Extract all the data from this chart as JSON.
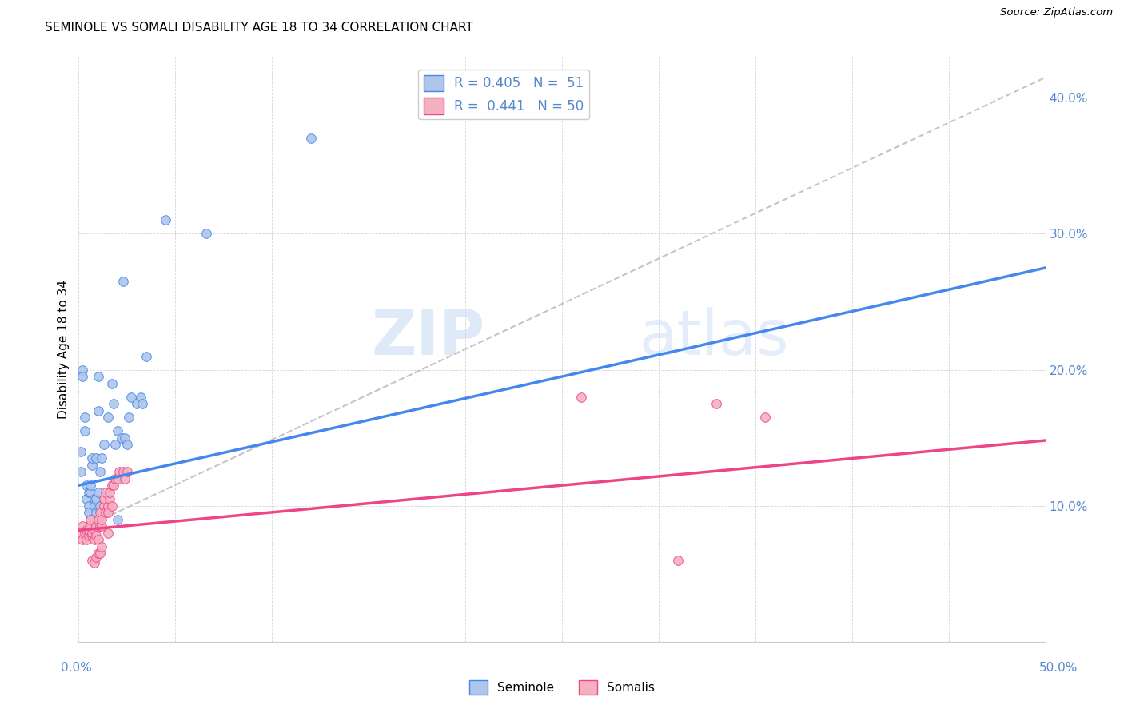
{
  "title": "SEMINOLE VS SOMALI DISABILITY AGE 18 TO 34 CORRELATION CHART",
  "source": "Source: ZipAtlas.com",
  "ylabel": "Disability Age 18 to 34",
  "xlim": [
    0.0,
    0.5
  ],
  "ylim": [
    0.0,
    0.43
  ],
  "watermark_zip": "ZIP",
  "watermark_atlas": "atlas",
  "seminole_color": "#aec6ea",
  "somali_color": "#f5b0c0",
  "seminole_line_color": "#4488ee",
  "somali_line_color": "#ee4488",
  "dashed_line_color": "#bbbbbb",
  "tick_color": "#5588cc",
  "legend_seminole_label": "R = 0.405   N =  51",
  "legend_somali_label": "R =  0.441   N = 50",
  "seminole_trend_x": [
    0.0,
    0.5
  ],
  "seminole_trend_y": [
    0.115,
    0.275
  ],
  "somali_trend_x": [
    0.0,
    0.5
  ],
  "somali_trend_y": [
    0.082,
    0.148
  ],
  "dashed_trend_x": [
    0.0,
    0.5
  ],
  "dashed_trend_y": [
    0.082,
    0.415
  ],
  "seminole_points": [
    [
      0.001,
      0.125
    ],
    [
      0.001,
      0.14
    ],
    [
      0.002,
      0.2
    ],
    [
      0.002,
      0.195
    ],
    [
      0.003,
      0.155
    ],
    [
      0.003,
      0.165
    ],
    [
      0.004,
      0.105
    ],
    [
      0.004,
      0.115
    ],
    [
      0.005,
      0.11
    ],
    [
      0.005,
      0.1
    ],
    [
      0.005,
      0.095
    ],
    [
      0.006,
      0.11
    ],
    [
      0.006,
      0.115
    ],
    [
      0.007,
      0.13
    ],
    [
      0.007,
      0.135
    ],
    [
      0.008,
      0.105
    ],
    [
      0.008,
      0.1
    ],
    [
      0.009,
      0.095
    ],
    [
      0.009,
      0.135
    ],
    [
      0.01,
      0.1
    ],
    [
      0.01,
      0.195
    ],
    [
      0.01,
      0.17
    ],
    [
      0.011,
      0.125
    ],
    [
      0.012,
      0.135
    ],
    [
      0.013,
      0.145
    ],
    [
      0.015,
      0.165
    ],
    [
      0.017,
      0.19
    ],
    [
      0.018,
      0.175
    ],
    [
      0.019,
      0.145
    ],
    [
      0.02,
      0.155
    ],
    [
      0.022,
      0.15
    ],
    [
      0.023,
      0.265
    ],
    [
      0.024,
      0.15
    ],
    [
      0.025,
      0.145
    ],
    [
      0.026,
      0.165
    ],
    [
      0.027,
      0.18
    ],
    [
      0.03,
      0.175
    ],
    [
      0.032,
      0.18
    ],
    [
      0.033,
      0.175
    ],
    [
      0.035,
      0.21
    ],
    [
      0.045,
      0.31
    ],
    [
      0.12,
      0.37
    ],
    [
      0.006,
      0.09
    ],
    [
      0.007,
      0.08
    ],
    [
      0.008,
      0.085
    ],
    [
      0.009,
      0.105
    ],
    [
      0.01,
      0.11
    ],
    [
      0.011,
      0.1
    ],
    [
      0.012,
      0.095
    ],
    [
      0.02,
      0.09
    ],
    [
      0.066,
      0.3
    ]
  ],
  "somali_points": [
    [
      0.001,
      0.08
    ],
    [
      0.002,
      0.075
    ],
    [
      0.002,
      0.085
    ],
    [
      0.003,
      0.08
    ],
    [
      0.004,
      0.075
    ],
    [
      0.004,
      0.082
    ],
    [
      0.005,
      0.078
    ],
    [
      0.005,
      0.082
    ],
    [
      0.006,
      0.085
    ],
    [
      0.006,
      0.09
    ],
    [
      0.007,
      0.078
    ],
    [
      0.007,
      0.08
    ],
    [
      0.008,
      0.075
    ],
    [
      0.008,
      0.082
    ],
    [
      0.009,
      0.085
    ],
    [
      0.009,
      0.078
    ],
    [
      0.01,
      0.075
    ],
    [
      0.01,
      0.09
    ],
    [
      0.011,
      0.085
    ],
    [
      0.011,
      0.095
    ],
    [
      0.012,
      0.085
    ],
    [
      0.012,
      0.09
    ],
    [
      0.013,
      0.1
    ],
    [
      0.013,
      0.105
    ],
    [
      0.014,
      0.095
    ],
    [
      0.014,
      0.11
    ],
    [
      0.015,
      0.1
    ],
    [
      0.015,
      0.095
    ],
    [
      0.016,
      0.105
    ],
    [
      0.016,
      0.11
    ],
    [
      0.017,
      0.1
    ],
    [
      0.017,
      0.115
    ],
    [
      0.018,
      0.115
    ],
    [
      0.019,
      0.12
    ],
    [
      0.02,
      0.12
    ],
    [
      0.021,
      0.125
    ],
    [
      0.023,
      0.125
    ],
    [
      0.024,
      0.12
    ],
    [
      0.025,
      0.125
    ],
    [
      0.007,
      0.06
    ],
    [
      0.008,
      0.058
    ],
    [
      0.009,
      0.062
    ],
    [
      0.01,
      0.065
    ],
    [
      0.011,
      0.065
    ],
    [
      0.012,
      0.07
    ],
    [
      0.015,
      0.08
    ],
    [
      0.33,
      0.175
    ],
    [
      0.355,
      0.165
    ],
    [
      0.26,
      0.18
    ],
    [
      0.31,
      0.06
    ]
  ],
  "background_color": "#ffffff"
}
